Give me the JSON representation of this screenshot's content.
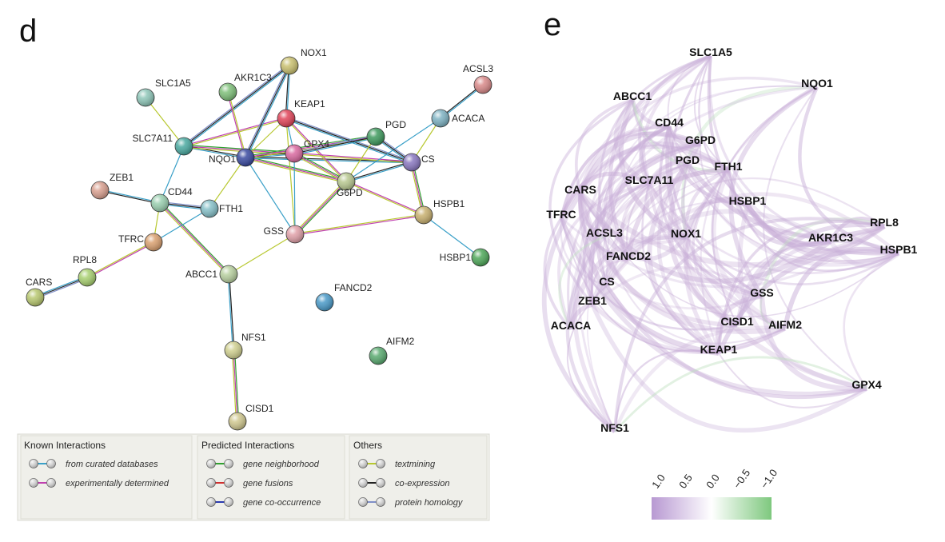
{
  "panel_d": {
    "letter": "d",
    "nodes": [
      {
        "id": "NOX1",
        "label": "NOX1",
        "color": "#c9c070"
      },
      {
        "id": "ACSL3",
        "label": "ACSL3",
        "color": "#d98a8a"
      },
      {
        "id": "SLC1A5",
        "label": "SLC1A5",
        "color": "#8ec6b8"
      },
      {
        "id": "AKR1C3",
        "label": "AKR1C3",
        "color": "#7fc07a"
      },
      {
        "id": "KEAP1",
        "label": "KEAP1",
        "color": "#e0455a"
      },
      {
        "id": "PGD",
        "label": "PGD",
        "color": "#3f9a5e"
      },
      {
        "id": "ACACA",
        "label": "ACACA",
        "color": "#7fb3c3"
      },
      {
        "id": "SLC7A11",
        "label": "SLC7A11",
        "color": "#4aa9a0"
      },
      {
        "id": "NQO1",
        "label": "NQO1",
        "color": "#3a4aa0"
      },
      {
        "id": "GPX4",
        "label": "GPX4",
        "color": "#d96aa0"
      },
      {
        "id": "CS",
        "label": "CS",
        "color": "#8a78c0"
      },
      {
        "id": "ZEB1",
        "label": "ZEB1",
        "color": "#d9a090"
      },
      {
        "id": "CD44",
        "label": "CD44",
        "color": "#9acfb0"
      },
      {
        "id": "FTH1",
        "label": "FTH1",
        "color": "#86c0c8"
      },
      {
        "id": "G6PD",
        "label": "G6PD",
        "color": "#b8c890"
      },
      {
        "id": "HSPB1",
        "label": "HSPB1",
        "color": "#c8b070"
      },
      {
        "id": "TFRC",
        "label": "TFRC",
        "color": "#d9a070"
      },
      {
        "id": "GSS",
        "label": "GSS",
        "color": "#e0a0a8"
      },
      {
        "id": "HSBP1",
        "label": "HSBP1",
        "color": "#4fa85a"
      },
      {
        "id": "RPL8",
        "label": "RPL8",
        "color": "#a8d070"
      },
      {
        "id": "ABCC1",
        "label": "ABCC1",
        "color": "#b8d0a0"
      },
      {
        "id": "CARS",
        "label": "CARS",
        "color": "#b8c870"
      },
      {
        "id": "FANCD2",
        "label": "FANCD2",
        "color": "#4a9ac8"
      },
      {
        "id": "NFS1",
        "label": "NFS1",
        "color": "#d0d090"
      },
      {
        "id": "AIFM2",
        "label": "AIFM2",
        "color": "#5aaa70"
      },
      {
        "id": "CISD1",
        "label": "CISD1",
        "color": "#d0c890"
      }
    ],
    "edges": [
      [
        "SLC1A5",
        "SLC7A11"
      ],
      [
        "SLC7A11",
        "NQO1"
      ],
      [
        "SLC7A11",
        "GPX4"
      ],
      [
        "SLC7A11",
        "CD44"
      ],
      [
        "SLC7A11",
        "KEAP1"
      ],
      [
        "SLC7A11",
        "NOX1"
      ],
      [
        "NQO1",
        "KEAP1"
      ],
      [
        "NQO1",
        "GPX4"
      ],
      [
        "NQO1",
        "G6PD"
      ],
      [
        "NQO1",
        "GSS"
      ],
      [
        "NQO1",
        "AKR1C3"
      ],
      [
        "NQO1",
        "NOX1"
      ],
      [
        "NQO1",
        "FTH1"
      ],
      [
        "NQO1",
        "CS"
      ],
      [
        "NQO1",
        "PGD"
      ],
      [
        "KEAP1",
        "GPX4"
      ],
      [
        "KEAP1",
        "G6PD"
      ],
      [
        "KEAP1",
        "CS"
      ],
      [
        "KEAP1",
        "GSS"
      ],
      [
        "KEAP1",
        "NOX1"
      ],
      [
        "GPX4",
        "G6PD"
      ],
      [
        "GPX4",
        "GSS"
      ],
      [
        "GPX4",
        "CS"
      ],
      [
        "GPX4",
        "PGD"
      ],
      [
        "G6PD",
        "PGD"
      ],
      [
        "G6PD",
        "CS"
      ],
      [
        "G6PD",
        "GSS"
      ],
      [
        "G6PD",
        "ACACA"
      ],
      [
        "G6PD",
        "HSPB1"
      ],
      [
        "PGD",
        "CS"
      ],
      [
        "ACACA",
        "CS"
      ],
      [
        "ACACA",
        "ACSL3"
      ],
      [
        "CS",
        "HSPB1"
      ],
      [
        "HSPB1",
        "HSBP1"
      ],
      [
        "HSPB1",
        "GSS"
      ],
      [
        "CD44",
        "FTH1"
      ],
      [
        "CD44",
        "TFRC"
      ],
      [
        "CD44",
        "ZEB1"
      ],
      [
        "CD44",
        "ABCC1"
      ],
      [
        "TFRC",
        "FTH1"
      ],
      [
        "TFRC",
        "RPL8"
      ],
      [
        "RPL8",
        "CARS"
      ],
      [
        "ABCC1",
        "GSS"
      ],
      [
        "ABCC1",
        "NFS1"
      ],
      [
        "NFS1",
        "CISD1"
      ]
    ],
    "legend": [
      {
        "title": "Known Interactions",
        "items": [
          {
            "label": "from curated databases",
            "color": "#3aa0c8"
          },
          {
            "label": "experimentally determined",
            "color": "#c040b0"
          }
        ]
      },
      {
        "title": "Predicted Interactions",
        "items": [
          {
            "label": "gene neighborhood",
            "color": "#30a030"
          },
          {
            "label": "gene fusions",
            "color": "#d03030"
          },
          {
            "label": "gene co-occurrence",
            "color": "#2a3ab0"
          }
        ]
      },
      {
        "title": "Others",
        "items": [
          {
            "label": "textmining",
            "color": "#b8c830"
          },
          {
            "label": "co-expression",
            "color": "#222222"
          },
          {
            "label": "protein homology",
            "color": "#8090c8"
          }
        ]
      }
    ]
  },
  "panel_e": {
    "letter": "e",
    "nodes": [
      {
        "id": "SLC1A5",
        "label": "SLC1A5"
      },
      {
        "id": "NQO1",
        "label": "NQO1"
      },
      {
        "id": "ABCC1",
        "label": "ABCC1"
      },
      {
        "id": "CD44",
        "label": "CD44"
      },
      {
        "id": "G6PD",
        "label": "G6PD"
      },
      {
        "id": "PGD",
        "label": "PGD"
      },
      {
        "id": "FTH1",
        "label": "FTH1"
      },
      {
        "id": "CARS",
        "label": "CARS"
      },
      {
        "id": "SLC7A11",
        "label": "SLC7A11"
      },
      {
        "id": "HSBP1",
        "label": "HSBP1"
      },
      {
        "id": "TFRC",
        "label": "TFRC"
      },
      {
        "id": "RPL8",
        "label": "RPL8"
      },
      {
        "id": "ACSL3",
        "label": "ACSL3"
      },
      {
        "id": "NOX1",
        "label": "NOX1"
      },
      {
        "id": "AKR1C3",
        "label": "AKR1C3"
      },
      {
        "id": "HSPB1",
        "label": "HSPB1"
      },
      {
        "id": "FANCD2",
        "label": "FANCD2"
      },
      {
        "id": "CS",
        "label": "CS"
      },
      {
        "id": "GSS",
        "label": "GSS"
      },
      {
        "id": "ZEB1",
        "label": "ZEB1"
      },
      {
        "id": "CISD1",
        "label": "CISD1"
      },
      {
        "id": "AIFM2",
        "label": "AIFM2"
      },
      {
        "id": "ACACA",
        "label": "ACACA"
      },
      {
        "id": "KEAP1",
        "label": "KEAP1"
      },
      {
        "id": "GPX4",
        "label": "GPX4"
      },
      {
        "id": "NFS1",
        "label": "NFS1"
      }
    ],
    "colorbar": {
      "ticks": [
        "1.0",
        "0.5",
        "0.0",
        "−0.5",
        "−1.0"
      ],
      "colors": [
        "#b89ad0",
        "#ffffff",
        "#8acb8a"
      ],
      "edge_color": "#c9b0d8"
    }
  }
}
